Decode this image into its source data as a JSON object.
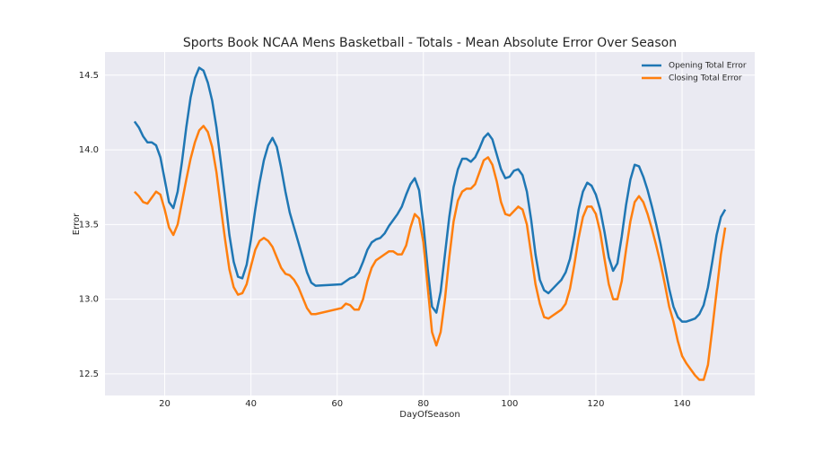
{
  "chart_data": {
    "type": "line",
    "title": "Sports Book NCAA Mens Basketball - Totals - Mean Absolute Error Over Season",
    "x_label": "DayOfSeason",
    "y_label": "Error",
    "x": [
      13,
      14,
      15,
      16,
      17,
      18,
      19,
      20,
      21,
      22,
      23,
      24,
      25,
      26,
      27,
      28,
      29,
      30,
      31,
      32,
      33,
      34,
      35,
      36,
      37,
      38,
      39,
      40,
      41,
      42,
      43,
      44,
      45,
      46,
      47,
      48,
      49,
      50,
      51,
      52,
      53,
      54,
      55,
      61,
      62,
      63,
      64,
      65,
      66,
      67,
      68,
      69,
      70,
      71,
      72,
      73,
      74,
      75,
      76,
      77,
      78,
      79,
      80,
      81,
      82,
      83,
      84,
      85,
      86,
      87,
      88,
      89,
      90,
      91,
      92,
      93,
      94,
      95,
      96,
      97,
      98,
      99,
      100,
      101,
      102,
      103,
      104,
      105,
      106,
      107,
      108,
      109,
      110,
      111,
      112,
      113,
      114,
      115,
      116,
      117,
      118,
      119,
      120,
      121,
      122,
      123,
      124,
      125,
      126,
      127,
      128,
      129,
      130,
      131,
      132,
      133,
      134,
      135,
      136,
      137,
      138,
      139,
      140,
      141,
      142,
      143,
      144,
      145,
      146,
      147,
      148,
      149,
      150
    ],
    "series": [
      {
        "name": "Opening Total Error",
        "color": "#1f77b4",
        "values": [
          14.19,
          14.15,
          14.09,
          14.05,
          14.05,
          14.03,
          13.95,
          13.8,
          13.65,
          13.61,
          13.72,
          13.92,
          14.15,
          14.35,
          14.48,
          14.55,
          14.53,
          14.45,
          14.33,
          14.15,
          13.92,
          13.68,
          13.43,
          13.25,
          13.15,
          13.14,
          13.23,
          13.4,
          13.6,
          13.78,
          13.93,
          14.03,
          14.08,
          14.02,
          13.88,
          13.72,
          13.58,
          13.48,
          13.38,
          13.28,
          13.18,
          13.11,
          13.09,
          13.1,
          13.12,
          13.14,
          13.15,
          13.18,
          13.25,
          13.33,
          13.38,
          13.4,
          13.41,
          13.44,
          13.49,
          13.53,
          13.57,
          13.62,
          13.7,
          13.77,
          13.81,
          13.73,
          13.5,
          13.2,
          12.95,
          12.91,
          13.05,
          13.3,
          13.55,
          13.75,
          13.87,
          13.94,
          13.94,
          13.92,
          13.95,
          14.01,
          14.08,
          14.11,
          14.07,
          13.97,
          13.87,
          13.81,
          13.82,
          13.86,
          13.87,
          13.83,
          13.72,
          13.53,
          13.3,
          13.13,
          13.06,
          13.04,
          13.07,
          13.1,
          13.13,
          13.18,
          13.27,
          13.42,
          13.6,
          13.72,
          13.78,
          13.76,
          13.7,
          13.6,
          13.45,
          13.28,
          13.19,
          13.24,
          13.42,
          13.63,
          13.8,
          13.9,
          13.89,
          13.82,
          13.73,
          13.62,
          13.5,
          13.37,
          13.22,
          13.07,
          12.95,
          12.88,
          12.85,
          12.85,
          12.86,
          12.87,
          12.9,
          12.96,
          13.08,
          13.25,
          13.43,
          13.55,
          13.6
        ]
      },
      {
        "name": "Closing Total Error",
        "color": "#ff7f0e",
        "values": [
          13.72,
          13.69,
          13.65,
          13.64,
          13.68,
          13.72,
          13.7,
          13.6,
          13.48,
          13.43,
          13.5,
          13.65,
          13.8,
          13.94,
          14.05,
          14.13,
          14.16,
          14.12,
          14.02,
          13.85,
          13.62,
          13.4,
          13.2,
          13.08,
          13.03,
          13.04,
          13.1,
          13.22,
          13.33,
          13.39,
          13.41,
          13.39,
          13.35,
          13.28,
          13.21,
          13.17,
          13.16,
          13.13,
          13.08,
          13.01,
          12.94,
          12.9,
          12.9,
          12.94,
          12.97,
          12.96,
          12.93,
          12.93,
          13.0,
          13.12,
          13.21,
          13.26,
          13.28,
          13.3,
          13.32,
          13.32,
          13.3,
          13.3,
          13.36,
          13.48,
          13.57,
          13.54,
          13.38,
          13.08,
          12.78,
          12.69,
          12.78,
          13.0,
          13.28,
          13.52,
          13.66,
          13.72,
          13.74,
          13.74,
          13.77,
          13.85,
          13.93,
          13.95,
          13.9,
          13.79,
          13.65,
          13.57,
          13.56,
          13.59,
          13.62,
          13.6,
          13.5,
          13.3,
          13.1,
          12.97,
          12.88,
          12.87,
          12.89,
          12.91,
          12.93,
          12.97,
          13.07,
          13.23,
          13.41,
          13.55,
          13.62,
          13.62,
          13.57,
          13.45,
          13.27,
          13.1,
          13.0,
          13.0,
          13.12,
          13.33,
          13.52,
          13.65,
          13.69,
          13.65,
          13.57,
          13.47,
          13.36,
          13.24,
          13.1,
          12.95,
          12.85,
          12.72,
          12.62,
          12.57,
          12.53,
          12.49,
          12.46,
          12.46,
          12.56,
          12.8,
          13.05,
          13.3,
          13.48
        ]
      }
    ],
    "xlim": [
      6.15,
      156.85
    ],
    "ylim": [
      12.355,
      14.655
    ],
    "xticks": [
      20,
      40,
      60,
      80,
      100,
      120,
      140
    ],
    "yticks": [
      12.5,
      {
        "value": 13,
        "label": "13.0"
      },
      13.5,
      {
        "value": 14,
        "label": "14.0"
      },
      14.5
    ],
    "grid": true,
    "legend": "upper right"
  }
}
